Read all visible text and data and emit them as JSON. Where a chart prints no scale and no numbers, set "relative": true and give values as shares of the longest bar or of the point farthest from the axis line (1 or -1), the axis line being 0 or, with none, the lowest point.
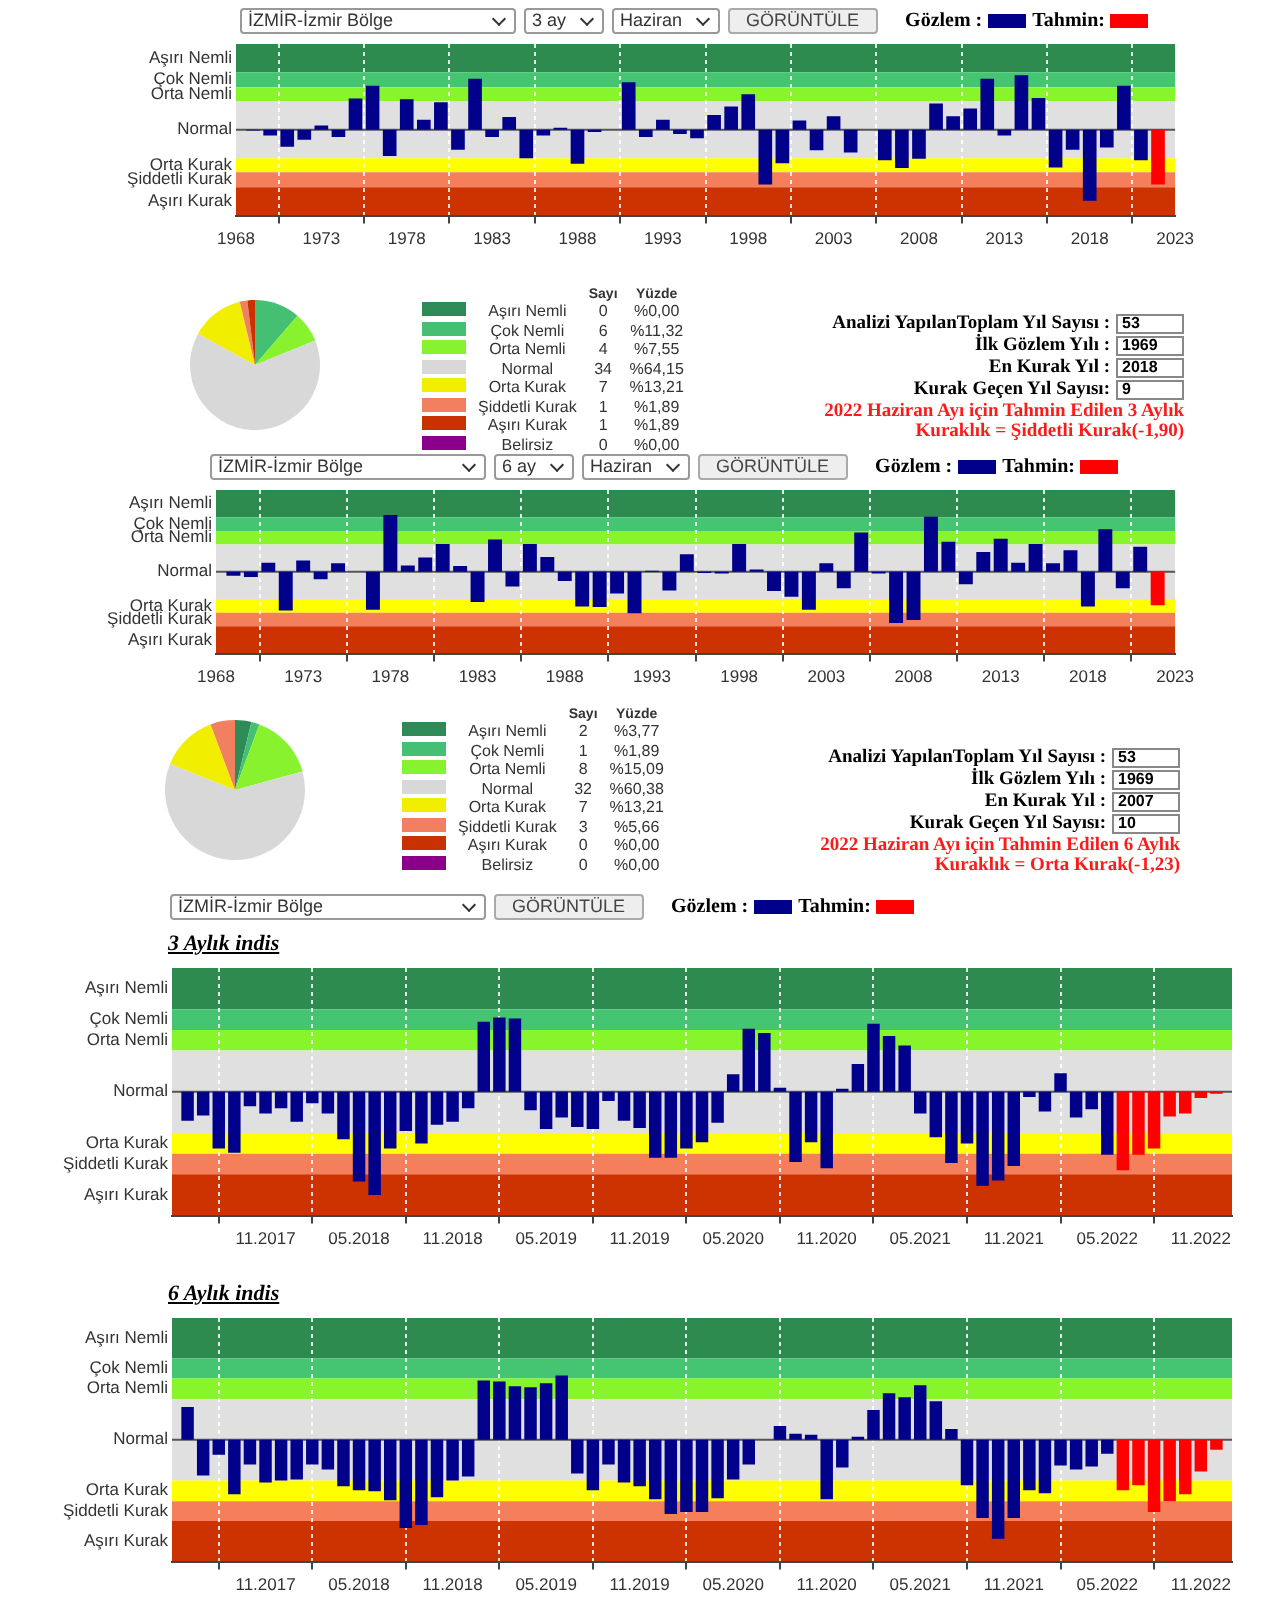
{
  "chart_data": [
    {
      "type": "bar",
      "annotations": [
        "İZMİR-İzmir Bölge",
        "3 ay",
        "Haziran",
        "GÖRÜNTÜLE"
      ],
      "legend": "top right",
      "grid": "x",
      "relative": true,
      "xlim": [
        1968,
        2023
      ],
      "xticks": [
        1968,
        1973,
        1978,
        1983,
        1988,
        1993,
        1998,
        2003,
        2008,
        2013,
        2018,
        2023
      ],
      "bands": [
        {
          "axis": "y",
          "from": 0.81,
          "to": 1.21,
          "color": "#2e8b50",
          "label": "Aşırı Nemli"
        },
        {
          "axis": "y",
          "from": 0.6,
          "to": 0.81,
          "color": "#45c472",
          "label": "Çok Nemli"
        },
        {
          "axis": "y",
          "from": 0.4,
          "to": 0.6,
          "color": "#88f52c",
          "label": "Orta Nemli"
        },
        {
          "axis": "y",
          "from": -0.4,
          "to": 0.4,
          "color": "#e0e0e0",
          "label": "Normal"
        },
        {
          "axis": "y",
          "from": -0.6,
          "to": -0.4,
          "color": "#ffff00",
          "label": "Orta Kurak"
        },
        {
          "axis": "y",
          "from": -0.81,
          "to": -0.6,
          "color": "#f47f5a",
          "label": "Şiddetli Kurak"
        },
        {
          "axis": "y",
          "from": -1.21,
          "to": -0.81,
          "color": "#cc3300",
          "label": "Aşırı Kurak"
        }
      ],
      "ref_lines": [
        {
          "axis": "y",
          "value": 0,
          "color": "#555555"
        }
      ],
      "series": [
        {
          "name": "Gözlem :",
          "color": "#00008b",
          "x": [
            1969,
            1970,
            1971,
            1972,
            1973,
            1974,
            1975,
            1976,
            1977,
            1978,
            1979,
            1980,
            1981,
            1982,
            1983,
            1984,
            1985,
            1986,
            1987,
            1988,
            1989,
            1990,
            1991,
            1992,
            1993,
            1994,
            1995,
            1996,
            1997,
            1998,
            1999,
            2000,
            2001,
            2002,
            2003,
            2004,
            2005,
            2006,
            2007,
            2008,
            2009,
            2010,
            2011,
            2012,
            2013,
            2014,
            2015,
            2016,
            2017,
            2018,
            2019,
            2020,
            2021
          ],
          "values": [
            -0.01,
            -0.08,
            -0.24,
            -0.14,
            0.06,
            -0.1,
            0.44,
            0.62,
            -0.37,
            0.43,
            0.14,
            0.39,
            -0.28,
            0.72,
            -0.1,
            0.18,
            -0.4,
            -0.08,
            0.03,
            -0.48,
            -0.03,
            0,
            0.67,
            -0.1,
            0.14,
            -0.06,
            -0.12,
            0.21,
            0.33,
            0.5,
            -0.77,
            -0.47,
            0.13,
            -0.29,
            0.19,
            -0.32,
            0,
            -0.43,
            -0.54,
            -0.41,
            0.37,
            0.19,
            0.3,
            0.72,
            -0.08,
            0.77,
            0.45,
            -0.53,
            -0.28,
            -1,
            -0.25,
            0.62,
            -0.43
          ]
        },
        {
          "name": "Tahmin:",
          "color": "#ff0000",
          "x": [
            2022
          ],
          "values": [
            -0.77
          ]
        }
      ]
    },
    {
      "type": "pie",
      "annotations": [
        "Sayı",
        "Yüzde",
        "0",
        "6",
        "4",
        "34",
        "7",
        "1",
        "1",
        "0"
      ],
      "legend": "right",
      "categories": [
        "Aşırı Nemli",
        "Çok Nemli",
        "Orta Nemli",
        "Normal",
        "Orta Kurak",
        "Şiddetli Kurak",
        "Aşırı Kurak",
        "Belirsiz"
      ],
      "values": [
        0,
        11.32,
        7.55,
        64.15,
        13.21,
        1.89,
        1.89,
        0
      ],
      "value_labels": [
        "%0,00",
        "%11,32",
        "%7,55",
        "%64,15",
        "%13,21",
        "%1,89",
        "%1,89",
        "%0,00"
      ],
      "colors": [
        "#2e8b57",
        "#45c072",
        "#88f22f",
        "#d8d8d8",
        "#f2ee00",
        "#f08060",
        "#c83200",
        "#8b008b"
      ]
    },
    {
      "type": "other",
      "annotations": [
        "Analizi YapılanToplam Yıl Sayısı :",
        "53",
        "İlk Gözlem Yılı :",
        "1969",
        "En Kurak Yıl :",
        "2018",
        "Kurak Geçen Yıl Sayısı:",
        "9",
        "2022 Haziran Ayı için Tahmin Edilen 3 Aylık Kuraklık = Şiddetli Kurak(-1,90)"
      ]
    },
    {
      "type": "bar",
      "annotations": [
        "İZMİR-İzmir Bölge",
        "6 ay",
        "Haziran",
        "GÖRÜNTÜLE"
      ],
      "legend": "top right",
      "grid": "x",
      "relative": true,
      "xlim": [
        1968,
        2023
      ],
      "xticks": [
        1968,
        1973,
        1978,
        1983,
        1988,
        1993,
        1998,
        2003,
        2008,
        2013,
        2018,
        2023
      ],
      "bands": [
        {
          "axis": "y",
          "from": 0.96,
          "to": 1.44,
          "color": "#2e8b50",
          "label": "Aşırı Nemli"
        },
        {
          "axis": "y",
          "from": 0.72,
          "to": 0.96,
          "color": "#45c472",
          "label": "Çok Nemli"
        },
        {
          "axis": "y",
          "from": 0.48,
          "to": 0.72,
          "color": "#88f52c",
          "label": "Orta Nemli"
        },
        {
          "axis": "y",
          "from": -0.48,
          "to": 0.48,
          "color": "#e0e0e0",
          "label": "Normal"
        },
        {
          "axis": "y",
          "from": -0.72,
          "to": -0.48,
          "color": "#ffff00",
          "label": "Orta Kurak"
        },
        {
          "axis": "y",
          "from": -0.96,
          "to": -0.72,
          "color": "#f47f5a",
          "label": "Şiddetli Kurak"
        },
        {
          "axis": "y",
          "from": -1.44,
          "to": -0.96,
          "color": "#cc3300",
          "label": "Aşırı Kurak"
        }
      ],
      "ref_lines": [
        {
          "axis": "y",
          "value": 0,
          "color": "#555555"
        }
      ],
      "series": [
        {
          "name": "Gözlem :",
          "color": "#00008b",
          "x": [
            1969,
            1970,
            1971,
            1972,
            1973,
            1974,
            1975,
            1976,
            1977,
            1978,
            1979,
            1980,
            1981,
            1982,
            1983,
            1984,
            1985,
            1986,
            1987,
            1988,
            1989,
            1990,
            1991,
            1992,
            1993,
            1994,
            1995,
            1996,
            1997,
            1998,
            1999,
            2000,
            2001,
            2002,
            2003,
            2004,
            2005,
            2006,
            2007,
            2008,
            2009,
            2010,
            2011,
            2012,
            2013,
            2014,
            2015,
            2016,
            2017,
            2018,
            2019,
            2020,
            2021
          ],
          "values": [
            -0.07,
            -0.09,
            0.16,
            -0.68,
            0.2,
            -0.13,
            0.15,
            0,
            -0.67,
            1,
            0.11,
            0.25,
            0.49,
            0.1,
            -0.53,
            0.57,
            -0.26,
            0.49,
            0.26,
            -0.16,
            -0.61,
            -0.62,
            -0.38,
            -0.73,
            0.02,
            -0.33,
            0.31,
            -0.02,
            -0.03,
            0.49,
            0.04,
            -0.34,
            -0.44,
            -0.67,
            0.15,
            -0.29,
            0.69,
            -0.03,
            -0.9,
            -0.85,
            0.97,
            0.53,
            -0.22,
            0.35,
            0.58,
            0.16,
            0.49,
            0.15,
            0.38,
            -0.61,
            0.75,
            -0.29,
            0.44
          ]
        },
        {
          "name": "Tahmin:",
          "color": "#ff0000",
          "x": [
            2022
          ],
          "values": [
            -0.59
          ]
        }
      ]
    },
    {
      "type": "pie",
      "annotations": [
        "Sayı",
        "Yüzde",
        "2",
        "1",
        "8",
        "32",
        "7",
        "3",
        "0",
        "0"
      ],
      "legend": "right",
      "categories": [
        "Aşırı Nemli",
        "Çok Nemli",
        "Orta Nemli",
        "Normal",
        "Orta Kurak",
        "Şiddetli Kurak",
        "Aşırı Kurak",
        "Belirsiz"
      ],
      "values": [
        3.77,
        1.89,
        15.09,
        60.38,
        13.21,
        5.66,
        0,
        0
      ],
      "value_labels": [
        "%3,77",
        "%1,89",
        "%15,09",
        "%60,38",
        "%13,21",
        "%5,66",
        "%0,00",
        "%0,00"
      ],
      "colors": [
        "#2e8b57",
        "#45c072",
        "#88f22f",
        "#d8d8d8",
        "#f2ee00",
        "#f08060",
        "#c83200",
        "#8b008b"
      ]
    },
    {
      "type": "other",
      "annotations": [
        "Analizi YapılanToplam Yıl Sayısı :",
        "53",
        "İlk Gözlem Yılı :",
        "1969",
        "En Kurak Yıl :",
        "2007",
        "Kurak Geçen Yıl Sayısı:",
        "10",
        "2022 Haziran Ayı için Tahmin Edilen 6 Aylık Kuraklık = Orta Kurak(-1,23)"
      ]
    },
    {
      "type": "bar",
      "title": "3 Aylık indis",
      "annotations": [
        "İZMİR-İzmir Bölge",
        "GÖRÜNTÜLE"
      ],
      "legend": "top right",
      "grid": "x",
      "relative": true,
      "xlim": [
        "2017-05",
        "2023-01"
      ],
      "xticks": [
        {
          "value": "2017-11",
          "label": "11.2017"
        },
        {
          "value": "2018-05",
          "label": "05.2018"
        },
        {
          "value": "2018-11",
          "label": "11.2018"
        },
        {
          "value": "2019-05",
          "label": "05.2019"
        },
        {
          "value": "2019-11",
          "label": "11.2019"
        },
        {
          "value": "2020-05",
          "label": "05.2020"
        },
        {
          "value": "2020-11",
          "label": "11.2020"
        },
        {
          "value": "2021-05",
          "label": "05.2021"
        },
        {
          "value": "2021-11",
          "label": "11.2021"
        },
        {
          "value": "2022-05",
          "label": "05.2022"
        },
        {
          "value": "2022-11",
          "label": "11.2022"
        }
      ],
      "bands": [
        {
          "axis": "y",
          "from": 0.8,
          "to": 1.2,
          "color": "#2e8b50",
          "label": "Aşırı Nemli"
        },
        {
          "axis": "y",
          "from": 0.6,
          "to": 0.8,
          "color": "#45c472",
          "label": "Çok Nemli"
        },
        {
          "axis": "y",
          "from": 0.4,
          "to": 0.6,
          "color": "#88f52c",
          "label": "Orta Nemli"
        },
        {
          "axis": "y",
          "from": -0.4,
          "to": 0.4,
          "color": "#e0e0e0",
          "label": "Normal"
        },
        {
          "axis": "y",
          "from": -0.6,
          "to": -0.4,
          "color": "#ffff00",
          "label": "Orta Kurak"
        },
        {
          "axis": "y",
          "from": -0.8,
          "to": -0.6,
          "color": "#f47f5a",
          "label": "Şiddetli Kurak"
        },
        {
          "axis": "y",
          "from": -1.2,
          "to": -0.8,
          "color": "#cc3300",
          "label": "Aşırı Kurak"
        }
      ],
      "ref_lines": [
        {
          "axis": "y",
          "value": 0,
          "color": "#555555"
        }
      ],
      "series": [
        {
          "name": "Gözlem :",
          "color": "#00008b",
          "x": [
            "2017-06",
            "2017-07",
            "2017-08",
            "2017-09",
            "2017-10",
            "2017-11",
            "2017-12",
            "2018-01",
            "2018-02",
            "2018-03",
            "2018-04",
            "2018-05",
            "2018-06",
            "2018-07",
            "2018-08",
            "2018-09",
            "2018-10",
            "2018-11",
            "2018-12",
            "2019-01",
            "2019-02",
            "2019-03",
            "2019-04",
            "2019-05",
            "2019-06",
            "2019-07",
            "2019-08",
            "2019-09",
            "2019-10",
            "2019-11",
            "2019-12",
            "2020-01",
            "2020-02",
            "2020-03",
            "2020-04",
            "2020-05",
            "2020-06",
            "2020-07",
            "2020-08",
            "2020-09",
            "2020-10",
            "2020-11",
            "2020-12",
            "2021-01",
            "2021-02",
            "2021-03",
            "2021-04",
            "2021-05",
            "2021-06",
            "2021-07",
            "2021-08",
            "2021-09",
            "2021-10",
            "2021-11",
            "2021-12",
            "2022-01",
            "2022-02",
            "2022-03",
            "2022-04",
            "2022-05"
          ],
          "values": [
            -0.28,
            -0.23,
            -0.55,
            -0.59,
            -0.14,
            -0.21,
            -0.16,
            -0.29,
            -0.11,
            -0.21,
            -0.46,
            -0.87,
            -1,
            -0.55,
            -0.38,
            -0.5,
            -0.32,
            -0.29,
            -0.16,
            0.68,
            0.72,
            0.71,
            -0.18,
            -0.36,
            -0.25,
            -0.34,
            -0.36,
            -0.09,
            -0.28,
            -0.35,
            -0.64,
            -0.64,
            -0.55,
            -0.49,
            -0.3,
            0.17,
            0.61,
            0.57,
            0.04,
            -0.68,
            -0.49,
            -0.74,
            0.03,
            0.27,
            0.66,
            0.54,
            0.45,
            -0.21,
            -0.44,
            -0.69,
            -0.5,
            -0.91,
            -0.86,
            -0.72,
            -0.05,
            -0.19,
            0.18,
            -0.25,
            -0.17,
            -0.61
          ]
        },
        {
          "name": "Tahmin:",
          "color": "#ff0000",
          "x": [
            "2022-06",
            "2022-07",
            "2022-08",
            "2022-09",
            "2022-10",
            "2022-11",
            "2022-12"
          ],
          "values": [
            -0.76,
            -0.61,
            -0.55,
            -0.24,
            -0.21,
            -0.06,
            -0.02
          ]
        }
      ]
    },
    {
      "type": "bar",
      "title": "6 Aylık indis",
      "grid": "x",
      "relative": true,
      "xlim": [
        "2017-05",
        "2023-01"
      ],
      "xticks": [
        {
          "value": "2017-11",
          "label": "11.2017"
        },
        {
          "value": "2018-05",
          "label": "05.2018"
        },
        {
          "value": "2018-11",
          "label": "11.2018"
        },
        {
          "value": "2019-05",
          "label": "05.2019"
        },
        {
          "value": "2019-11",
          "label": "11.2019"
        },
        {
          "value": "2020-05",
          "label": "05.2020"
        },
        {
          "value": "2020-11",
          "label": "11.2020"
        },
        {
          "value": "2021-05",
          "label": "05.2021"
        },
        {
          "value": "2021-11",
          "label": "11.2021"
        },
        {
          "value": "2022-05",
          "label": "05.2022"
        },
        {
          "value": "2022-11",
          "label": "11.2022"
        }
      ],
      "bands": [
        {
          "axis": "y",
          "from": 0.82,
          "to": 1.23,
          "color": "#2e8b50",
          "label": "Aşırı Nemli"
        },
        {
          "axis": "y",
          "from": 0.62,
          "to": 0.82,
          "color": "#45c472",
          "label": "Çok Nemli"
        },
        {
          "axis": "y",
          "from": 0.41,
          "to": 0.62,
          "color": "#88f52c",
          "label": "Orta Nemli"
        },
        {
          "axis": "y",
          "from": -0.41,
          "to": 0.41,
          "color": "#e0e0e0",
          "label": "Normal"
        },
        {
          "axis": "y",
          "from": -0.62,
          "to": -0.41,
          "color": "#ffff00",
          "label": "Orta Kurak"
        },
        {
          "axis": "y",
          "from": -0.82,
          "to": -0.62,
          "color": "#f47f5a",
          "label": "Şiddetli Kurak"
        },
        {
          "axis": "y",
          "from": -1.23,
          "to": -0.82,
          "color": "#cc3300",
          "label": "Aşırı Kurak"
        }
      ],
      "ref_lines": [
        {
          "axis": "y",
          "value": 0,
          "color": "#555555"
        }
      ],
      "series": [
        {
          "color": "#00008b",
          "x": [
            "2017-06",
            "2017-07",
            "2017-08",
            "2017-09",
            "2017-10",
            "2017-11",
            "2017-12",
            "2018-01",
            "2018-02",
            "2018-03",
            "2018-04",
            "2018-05",
            "2018-06",
            "2018-07",
            "2018-08",
            "2018-09",
            "2018-10",
            "2018-11",
            "2018-12",
            "2019-01",
            "2019-02",
            "2019-03",
            "2019-04",
            "2019-05",
            "2019-06",
            "2019-07",
            "2019-08",
            "2019-09",
            "2019-10",
            "2019-11",
            "2019-12",
            "2020-01",
            "2020-02",
            "2020-03",
            "2020-04",
            "2020-05",
            "2020-06",
            "2020-07",
            "2020-08",
            "2020-09",
            "2020-10",
            "2020-11",
            "2020-12",
            "2021-01",
            "2021-02",
            "2021-03",
            "2021-04",
            "2021-05",
            "2021-06",
            "2021-07",
            "2021-08",
            "2021-09",
            "2021-10",
            "2021-11",
            "2021-12",
            "2022-01",
            "2022-02",
            "2022-03",
            "2022-04",
            "2022-05"
          ],
          "values": [
            0.33,
            -0.36,
            -0.15,
            -0.55,
            -0.25,
            -0.43,
            -0.41,
            -0.4,
            -0.25,
            -0.3,
            -0.47,
            -0.51,
            -0.52,
            -0.61,
            -0.89,
            -0.86,
            -0.58,
            -0.41,
            -0.37,
            0.6,
            0.59,
            0.54,
            0.53,
            0.57,
            0.65,
            -0.34,
            -0.51,
            -0.25,
            -0.43,
            -0.47,
            -0.6,
            -0.75,
            -0.73,
            -0.73,
            -0.59,
            -0.4,
            -0.25,
            0,
            0.14,
            0.06,
            0.05,
            -0.6,
            -0.28,
            0.03,
            0.3,
            0.47,
            0.43,
            0.55,
            0.39,
            0.11,
            -0.46,
            -0.79,
            -1,
            -0.79,
            -0.51,
            -0.54,
            -0.26,
            -0.3,
            -0.27,
            -0.14
          ]
        },
        {
          "color": "#ff0000",
          "x": [
            "2022-06",
            "2022-07",
            "2022-08",
            "2022-09",
            "2022-10",
            "2022-11",
            "2022-12"
          ],
          "values": [
            -0.51,
            -0.46,
            -0.73,
            -0.62,
            -0.55,
            -0.32,
            -0.1
          ]
        }
      ]
    }
  ]
}
